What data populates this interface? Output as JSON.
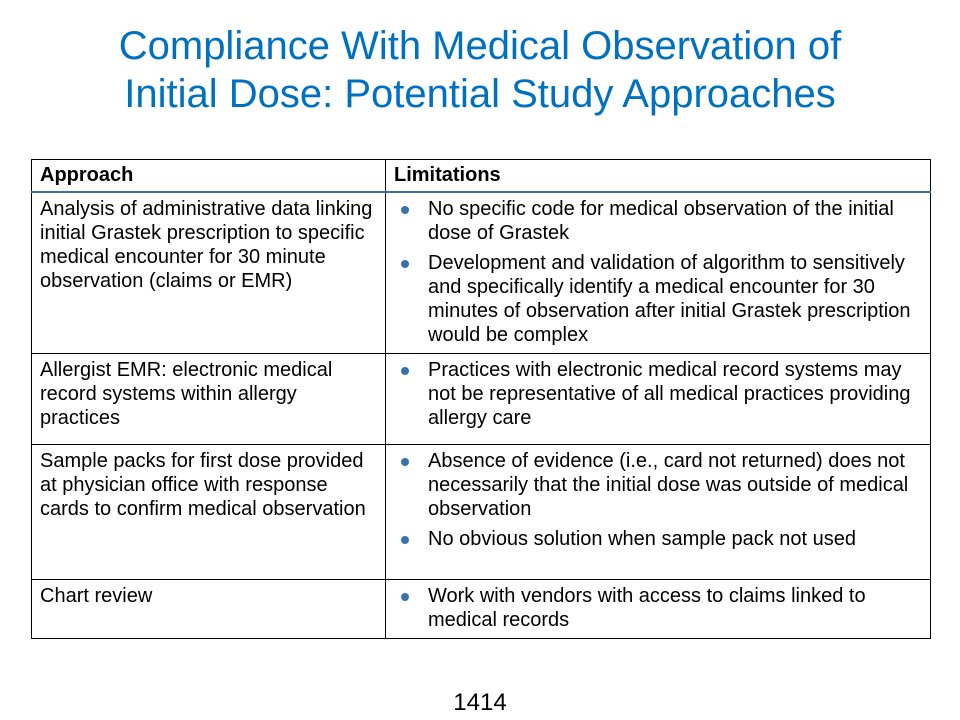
{
  "slide": {
    "title_line1": "Compliance With Medical Observation of",
    "title_line2": "Initial Dose: Potential Study Approaches",
    "title_color": "#0070C0",
    "bullet_color": "#3a6fb0"
  },
  "table": {
    "headers": {
      "approach": "Approach",
      "limitations": "Limitations"
    },
    "rows": [
      {
        "approach": "Analysis of administrative data linking initial Grastek prescription to specific medical encounter for 30 minute observation (claims or EMR)",
        "limitations": [
          "No specific code for medical observation of the initial dose of Grastek",
          "Development and validation of algorithm to sensitively and specifically identify a medical encounter for 30 minutes of observation after initial Grastek prescription would be complex"
        ]
      },
      {
        "approach": "Allergist EMR: electronic medical record systems within allergy practices",
        "limitations": [
          "Practices with electronic medical record systems may not be representative of all medical practices providing allergy care"
        ]
      },
      {
        "approach": "Sample packs for first dose provided at physician office with response cards to confirm medical observation",
        "limitations": [
          "Absence of evidence (i.e., card not returned) does not necessarily that the initial dose was outside of medical observation",
          "No obvious solution when sample pack not used"
        ]
      },
      {
        "approach": "Chart review",
        "limitations": [
          "Work with vendors with access to claims linked to medical records"
        ]
      }
    ]
  },
  "footer": {
    "page_number": "1414"
  }
}
